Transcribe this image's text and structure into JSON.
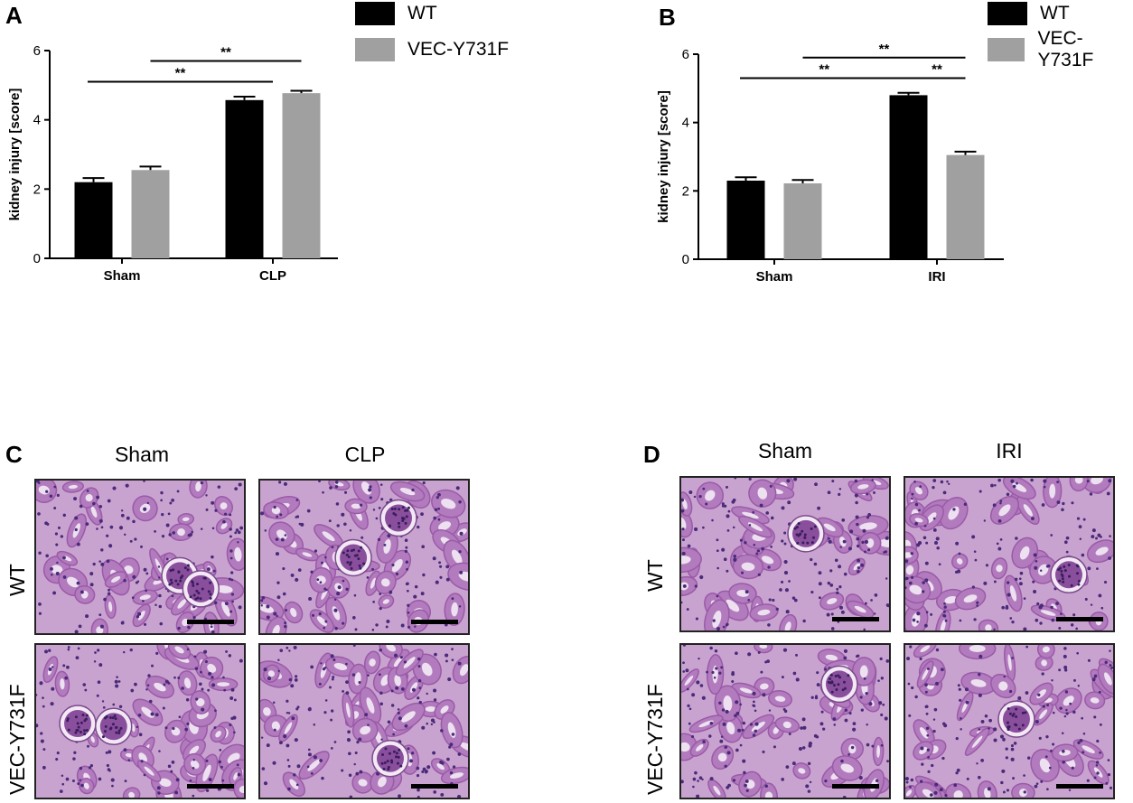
{
  "panels": {
    "A": {
      "letter": "A"
    },
    "B": {
      "letter": "B"
    },
    "C": {
      "letter": "C",
      "columns": [
        "Sham",
        "CLP"
      ],
      "rows": [
        "WT",
        "VEC-Y731F"
      ]
    },
    "D": {
      "letter": "D",
      "columns": [
        "Sham",
        "IRI"
      ],
      "rows": [
        "WT",
        "VEC-Y731F"
      ]
    }
  },
  "legend": [
    {
      "name": "WT",
      "color": "#000000"
    },
    {
      "name": "VEC-Y731F",
      "color": "#a0a0a0"
    }
  ],
  "chart_data": [
    {
      "type": "bar",
      "panel": "A",
      "categories": [
        "Sham",
        "CLP"
      ],
      "series": [
        {
          "name": "WT",
          "values": [
            2.2,
            4.57
          ],
          "errors": [
            0.12,
            0.1
          ],
          "color": "#000000"
        },
        {
          "name": "VEC-Y731F",
          "values": [
            2.55,
            4.77
          ],
          "errors": [
            0.1,
            0.07
          ],
          "color": "#a0a0a0"
        }
      ],
      "ylabel": "kidney injury [score]",
      "ylim": [
        0,
        6
      ],
      "yticks": [
        0,
        2,
        4,
        6
      ],
      "grid": false,
      "annotations": [
        {
          "label": "**",
          "from": "Sham",
          "to": "CLP",
          "y": 5.1
        },
        {
          "label": "**",
          "from": "Sham-VEC-Y731F",
          "to": "CLP-VEC-Y731F",
          "y": 5.7
        }
      ]
    },
    {
      "type": "bar",
      "panel": "B",
      "categories": [
        "Sham",
        "IRI"
      ],
      "series": [
        {
          "name": "WT",
          "values": [
            2.3,
            4.8
          ],
          "errors": [
            0.1,
            0.07
          ],
          "color": "#000000"
        },
        {
          "name": "VEC-Y731F",
          "values": [
            2.22,
            3.05
          ],
          "errors": [
            0.1,
            0.1
          ],
          "color": "#a0a0a0"
        }
      ],
      "ylabel": "kidney injury [score]",
      "ylim": [
        0,
        6
      ],
      "yticks": [
        0,
        2,
        4,
        6
      ],
      "grid": false,
      "annotations": [
        {
          "label": "**",
          "from": "Sham",
          "to": "IRI-WT",
          "y": 5.3
        },
        {
          "label": "**",
          "from": "IRI-WT",
          "to": "IRI-VEC-Y731F",
          "y": 5.3
        },
        {
          "label": "**",
          "from": "Sham-VEC-Y731F",
          "to": "IRI-VEC-Y731F",
          "y": 5.9
        }
      ]
    }
  ]
}
